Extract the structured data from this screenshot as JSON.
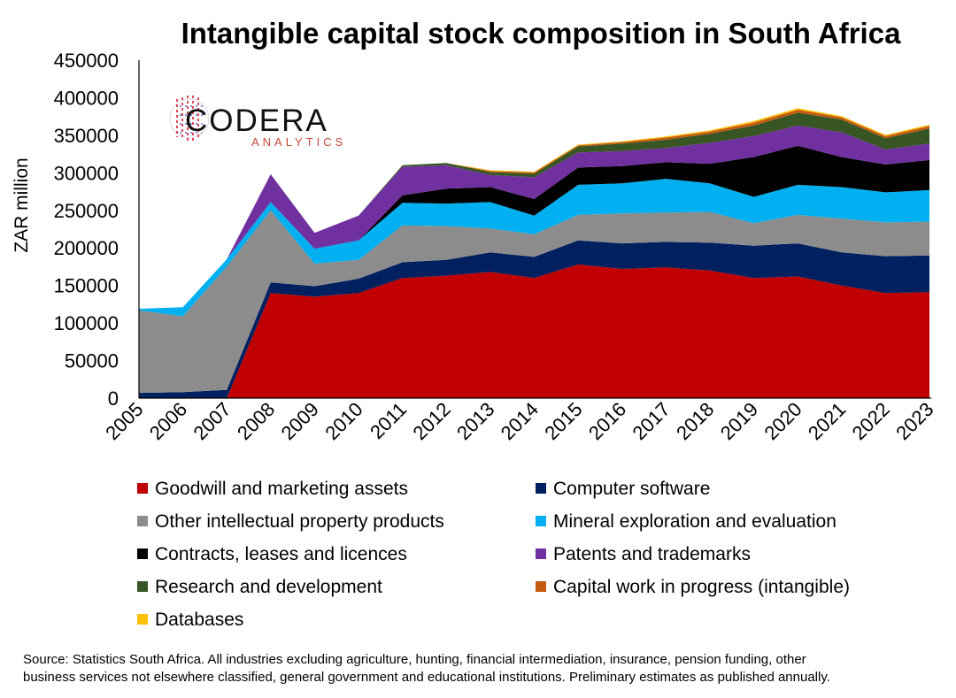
{
  "chart_data": {
    "type": "area",
    "stacked": true,
    "title": "Intangible capital stock composition in South Africa",
    "ylabel": "ZAR million",
    "xlabel": "",
    "ylim": [
      0,
      450000
    ],
    "yticks": [
      "0",
      "50000",
      "100000",
      "150000",
      "200000",
      "250000",
      "300000",
      "350000",
      "400000",
      "450000"
    ],
    "x": [
      "2005",
      "2006",
      "2007",
      "2008",
      "2009",
      "2010",
      "2011",
      "2012",
      "2013",
      "2014",
      "2015",
      "2016",
      "2017",
      "2018",
      "2019",
      "2020",
      "2021",
      "2022",
      "2023"
    ],
    "legend_position": "bottom",
    "grid": false,
    "series": [
      {
        "name": "Goodwill and marketing assets",
        "color": "#C00000",
        "values": [
          0,
          0,
          0,
          140000,
          135000,
          140000,
          160000,
          163000,
          168000,
          160000,
          178000,
          172000,
          174000,
          170000,
          160000,
          162000,
          150000,
          140000,
          141000
        ]
      },
      {
        "name": "Computer software",
        "color": "#002060",
        "values": [
          7000,
          8000,
          11000,
          14000,
          14000,
          19000,
          21000,
          21000,
          26000,
          28000,
          32000,
          34000,
          34000,
          37000,
          43000,
          44000,
          44000,
          49000,
          49000
        ]
      },
      {
        "name": "Other intellectual property products",
        "color": "#8C8C8C",
        "values": [
          110000,
          101000,
          164000,
          96000,
          30000,
          25000,
          49000,
          45000,
          32000,
          30000,
          34000,
          40000,
          39000,
          41000,
          30000,
          38000,
          45000,
          45000,
          45000
        ]
      },
      {
        "name": "Mineral exploration and evaluation",
        "color": "#00B0F0",
        "values": [
          2000,
          12000,
          10000,
          11000,
          20000,
          26000,
          30000,
          30000,
          35000,
          25000,
          40000,
          40000,
          45000,
          38000,
          35000,
          40000,
          42000,
          40000,
          42000
        ]
      },
      {
        "name": "Contracts, leases and licences",
        "color": "#000000",
        "values": [
          0,
          0,
          0,
          0,
          0,
          0,
          10000,
          20000,
          20000,
          22000,
          23000,
          23000,
          22000,
          26000,
          53000,
          52000,
          40000,
          37000,
          40000
        ]
      },
      {
        "name": "Patents and trademarks",
        "color": "#7030A0",
        "values": [
          0,
          0,
          0,
          37000,
          21000,
          33000,
          38000,
          31000,
          16000,
          29000,
          20000,
          20000,
          19000,
          28000,
          28000,
          27000,
          33000,
          20000,
          22000
        ]
      },
      {
        "name": "Research and development",
        "color": "#375623",
        "values": [
          0,
          0,
          0,
          0,
          0,
          0,
          2000,
          3000,
          4000,
          5000,
          8000,
          10000,
          11000,
          12000,
          14000,
          17000,
          17000,
          15000,
          20000
        ]
      },
      {
        "name": "Capital work in progress (intangible)",
        "color": "#C55A11",
        "values": [
          0,
          0,
          0,
          0,
          0,
          0,
          0,
          0,
          1500,
          1500,
          1500,
          2000,
          3000,
          3000,
          4000,
          4000,
          3000,
          3000,
          3500
        ]
      },
      {
        "name": "Databases",
        "color": "#FFC000",
        "values": [
          0,
          0,
          0,
          0,
          0,
          0,
          0,
          0,
          1000,
          1000,
          1000,
          1000,
          1500,
          1500,
          2000,
          2000,
          1500,
          1500,
          1500
        ]
      }
    ]
  },
  "logo": {
    "main": "CODERA",
    "sub": "ANALYTICS"
  },
  "source_lines": [
    "Source: Statistics South Africa. All industries excluding agriculture, hunting, financial intermediation, insurance, pension funding, other",
    "business services not elsewhere classified, general government and educational institutions. Preliminary estimates as published annually."
  ]
}
